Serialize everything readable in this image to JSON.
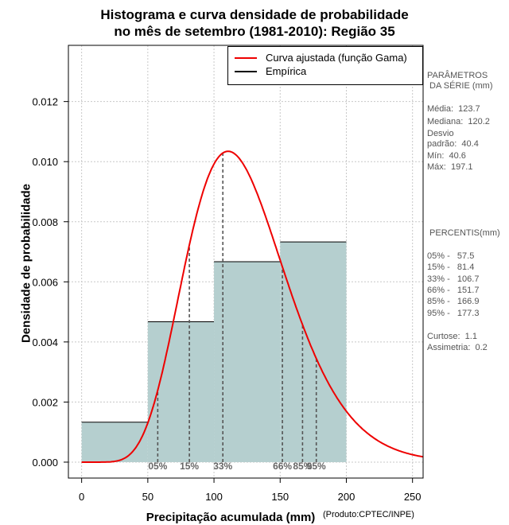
{
  "chart_data": {
    "type": "bar",
    "title_line1": "Histograma e curva densidade de probabilidade",
    "title_line2": "no mês de setembro (1981-2010): Região 35",
    "xlabel": "Precipitação acumulada (mm)",
    "ylabel": "Densidade de probabilidade",
    "credit": "(Produto:CPTEC/INPE)",
    "xlim": [
      -10,
      258
    ],
    "ylim": [
      -0.00053,
      0.01387
    ],
    "xticks": [
      0,
      50,
      100,
      150,
      200,
      250
    ],
    "xtick_labels": [
      "0",
      "50",
      "100",
      "150",
      "200",
      "250"
    ],
    "yticks": [
      0.0,
      0.002,
      0.004,
      0.006,
      0.008,
      0.01,
      0.012
    ],
    "ytick_labels": [
      "0.000",
      "0.002",
      "0.004",
      "0.006",
      "0.008",
      "0.010",
      "0.012"
    ],
    "grid": true,
    "bins": [
      {
        "x0": 0,
        "x1": 50,
        "density": 0.00133
      },
      {
        "x0": 50,
        "x1": 100,
        "density": 0.00467
      },
      {
        "x0": 100,
        "x1": 150,
        "density": 0.00667
      },
      {
        "x0": 150,
        "x1": 200,
        "density": 0.00733
      }
    ],
    "bar_color": "#b5cfcf",
    "curve": {
      "name": "Curva ajustada (função Gama)",
      "distribution": "gamma",
      "shape": 9.4,
      "rate": 0.0759,
      "color": "#ee0000"
    },
    "empirica": {
      "name": "Empírica",
      "color": "#000000"
    },
    "legend_position": "top-right",
    "percentile_markers": [
      {
        "label": "05%",
        "value": 57.5
      },
      {
        "label": "15%",
        "value": 81.4
      },
      {
        "label": "33%",
        "value": 106.7
      },
      {
        "label": "66%",
        "value": 151.7
      },
      {
        "label": "85%",
        "value": 166.9
      },
      {
        "label": "95%",
        "value": 177.3
      }
    ]
  },
  "side_panel": {
    "parametros_title": "PARÂMETROS\n DA SÉRIE (mm)",
    "media": "Média:  123.7",
    "mediana": "Mediana:  120.2",
    "desvio": "Desvio\npadrão:  40.4",
    "min": "Mín:  40.6",
    "max": "Máx:  197.1",
    "percentis_title": " PERCENTIS(mm)",
    "p05": "05% -   57.5",
    "p15": "15% -   81.4",
    "p33": "33% -   106.7",
    "p66": "66% -   151.7",
    "p85": "85% -   166.9",
    "p95": "95% -   177.3",
    "curtose": "Curtose:  1.1",
    "assimetria": "Assimetria:  0.2"
  }
}
